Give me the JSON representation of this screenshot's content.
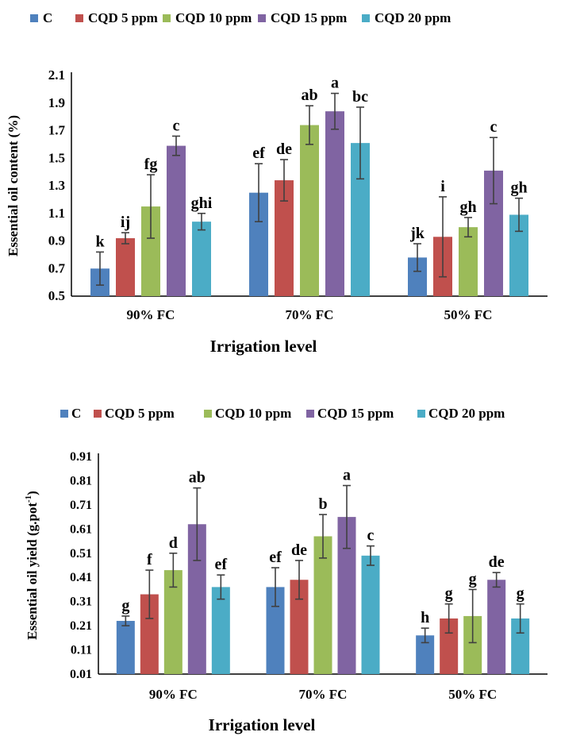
{
  "colors": {
    "C": "#4F81BD",
    "CQD 5 ppm": "#C0504D",
    "CQD 10 ppm": "#9BBB59",
    "CQD 15 ppm": "#8064A2",
    "CQD 20 ppm": "#4BACC6",
    "axis": "#000000",
    "errorbar": "#404040"
  },
  "chart_data": [
    {
      "type": "bar",
      "categories": [
        "90% FC",
        "70% FC",
        "50% FC"
      ],
      "xlabel": "Irrigation level",
      "ylabel": "Essential oil content (%)",
      "ylim": [
        0.5,
        2.1
      ],
      "yticks": [
        "0.5",
        "0.7",
        "0.9",
        "1.1",
        "1.3",
        "1.5",
        "1.7",
        "1.9",
        "2.1"
      ],
      "legend_position": "top",
      "series": [
        {
          "name": "C",
          "values": [
            0.7,
            1.25,
            0.78
          ],
          "errors": [
            0.12,
            0.21,
            0.1
          ],
          "letters": [
            "k",
            "ef",
            "jk"
          ]
        },
        {
          "name": "CQD 5 ppm",
          "values": [
            0.92,
            1.34,
            0.93
          ],
          "errors": [
            0.04,
            0.15,
            0.29
          ],
          "letters": [
            "ij",
            "de",
            "i"
          ]
        },
        {
          "name": "CQD 10 ppm",
          "values": [
            1.15,
            1.74,
            1.0
          ],
          "errors": [
            0.23,
            0.14,
            0.07
          ],
          "letters": [
            "fg",
            "ab",
            "gh"
          ]
        },
        {
          "name": "CQD 15 ppm",
          "values": [
            1.59,
            1.84,
            1.41
          ],
          "errors": [
            0.07,
            0.13,
            0.24
          ],
          "letters": [
            "c",
            "a",
            "c"
          ]
        },
        {
          "name": "CQD 20 ppm",
          "values": [
            1.04,
            1.61,
            1.09
          ],
          "errors": [
            0.06,
            0.26,
            0.12
          ],
          "letters": [
            "ghi",
            "bc",
            "gh"
          ]
        }
      ]
    },
    {
      "type": "bar",
      "categories": [
        "90% FC",
        "70% FC",
        "50% FC"
      ],
      "xlabel": "Irrigation level",
      "ylabel": "Essential oil yield (g.pot",
      "ylabel_sup": "-1",
      "ylabel_end": ")",
      "ylim": [
        0.01,
        0.91
      ],
      "yticks": [
        "0.01",
        "0.11",
        "0.21",
        "0.31",
        "0.41",
        "0.51",
        "0.61",
        "0.71",
        "0.81",
        "0.91"
      ],
      "legend_position": "top",
      "series": [
        {
          "name": "C",
          "values": [
            0.23,
            0.37,
            0.17
          ],
          "errors": [
            0.02,
            0.08,
            0.03
          ],
          "letters": [
            "g",
            "ef",
            "h"
          ]
        },
        {
          "name": "CQD 5 ppm",
          "values": [
            0.34,
            0.4,
            0.24
          ],
          "errors": [
            0.1,
            0.08,
            0.06
          ],
          "letters": [
            "f",
            "de",
            "g"
          ]
        },
        {
          "name": "CQD 10 ppm",
          "values": [
            0.44,
            0.58,
            0.25
          ],
          "errors": [
            0.07,
            0.09,
            0.11
          ],
          "letters": [
            "d",
            "b",
            "g"
          ]
        },
        {
          "name": "CQD 15 ppm",
          "values": [
            0.63,
            0.66,
            0.4
          ],
          "errors": [
            0.15,
            0.13,
            0.03
          ],
          "letters": [
            "ab",
            "a",
            "de"
          ]
        },
        {
          "name": "CQD 20 ppm",
          "values": [
            0.37,
            0.5,
            0.24
          ],
          "errors": [
            0.05,
            0.04,
            0.06
          ],
          "letters": [
            "ef",
            "c",
            "g"
          ]
        }
      ]
    }
  ]
}
